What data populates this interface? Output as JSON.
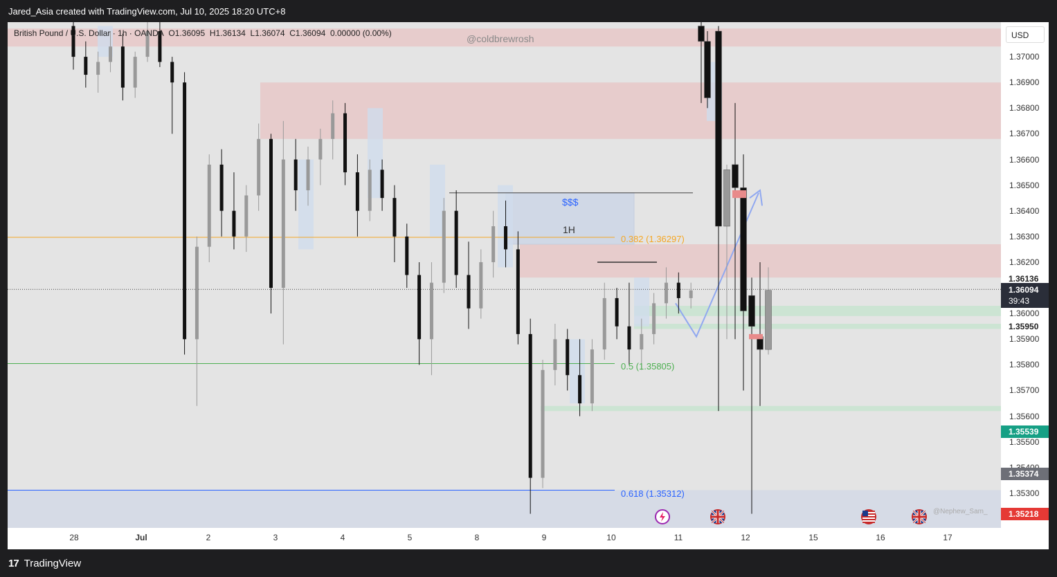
{
  "header": {
    "title": "Jared_Asia created with TradingView.com, Jul 10, 2025 18:20 UTC+8"
  },
  "legend": {
    "symbol": "British Pound / U.S. Dollar · 1h · OANDA",
    "open": "O1.36095",
    "high": "H1.36134",
    "low": "L1.36074",
    "close": "C1.36094",
    "change": "0.00000 (0.00%)"
  },
  "watermark": "@coldbrewrosh",
  "watermark2": "@Nephew_Sam_",
  "currency_button": "USD",
  "footer": {
    "brand": "TradingView",
    "logo_glyph": "17"
  },
  "annotations": {
    "liquidity": "$$$",
    "timeframe": "1H"
  },
  "fib_labels": {
    "f382": "0.382 (1.36297)",
    "f5": "0.5 (1.35805)",
    "f618": "0.618 (1.35312)"
  },
  "price_labels": {
    "p1": "1.36136",
    "current": "1.36094",
    "countdown": "39:43",
    "p2": "1.35950",
    "p3": "1.35539",
    "p4": "1.35374",
    "p5": "1.35218"
  },
  "colors": {
    "background": "#e4e4e4",
    "up": "#999999",
    "down": "#111111",
    "fib382": "#f5a623",
    "fib5": "#4caf50",
    "fib618": "#2962ff",
    "supply_zone": "#e8c8c8",
    "demand_zone": "#c8e4d0"
  },
  "chart_data": {
    "type": "candlestick",
    "symbol": "GBPUSD",
    "timeframe": "1h",
    "x_ticks": [
      "28",
      "Jul",
      "2",
      "3",
      "4",
      "5",
      "8",
      "9",
      "10",
      "11",
      "12",
      "15",
      "16",
      "17"
    ],
    "y_ticks": [
      "1.37000",
      "1.36900",
      "1.36800",
      "1.36700",
      "1.36600",
      "1.36500",
      "1.36400",
      "1.36300",
      "1.36200",
      "1.36000",
      "1.35900",
      "1.35800",
      "1.35700",
      "1.35600",
      "1.35500",
      "1.35400",
      "1.35300"
    ],
    "ylim": [
      1.35165,
      1.37135
    ],
    "last_price": 1.36094,
    "horizontal_lines": [
      {
        "label": "0.382 (1.36297)",
        "price": 1.36297,
        "color": "#f5a623"
      },
      {
        "label": "0.5 (1.35805)",
        "price": 1.35805,
        "color": "#4caf50"
      },
      {
        "label": "0.618 (1.35312)",
        "price": 1.35312,
        "color": "#2962ff"
      }
    ],
    "zones": [
      {
        "kind": "supply",
        "from": 1.3704,
        "to": 1.3711
      },
      {
        "kind": "supply",
        "from": 1.3668,
        "to": 1.369
      },
      {
        "kind": "supply",
        "from": 1.3614,
        "to": 1.3627
      },
      {
        "kind": "demand",
        "from": 1.3599,
        "to": 1.3603
      },
      {
        "kind": "demand",
        "from": 1.3594,
        "to": 1.3596
      },
      {
        "kind": "demand",
        "from": 1.3562,
        "to": 1.3564
      }
    ],
    "candles": [
      {
        "d": "28",
        "o": 1.3712,
        "h": 1.3718,
        "l": 1.3695,
        "c": 1.37
      },
      {
        "d": "28",
        "o": 1.37,
        "h": 1.3706,
        "l": 1.3688,
        "c": 1.3693
      },
      {
        "d": "28",
        "o": 1.3693,
        "h": 1.3702,
        "l": 1.3686,
        "c": 1.3698
      },
      {
        "d": "Jul",
        "o": 1.3698,
        "h": 1.371,
        "l": 1.3694,
        "c": 1.3704
      },
      {
        "d": "Jul",
        "o": 1.3704,
        "h": 1.3709,
        "l": 1.3683,
        "c": 1.3688
      },
      {
        "d": "Jul",
        "o": 1.3688,
        "h": 1.3702,
        "l": 1.3684,
        "c": 1.37
      },
      {
        "d": "2",
        "o": 1.37,
        "h": 1.3714,
        "l": 1.3698,
        "c": 1.371
      },
      {
        "d": "2",
        "o": 1.371,
        "h": 1.3716,
        "l": 1.3696,
        "c": 1.3698
      },
      {
        "d": "3",
        "o": 1.3698,
        "h": 1.37,
        "l": 1.367,
        "c": 1.369
      },
      {
        "d": "3",
        "o": 1.369,
        "h": 1.3694,
        "l": 1.3584,
        "c": 1.359
      },
      {
        "d": "3",
        "o": 1.359,
        "h": 1.363,
        "l": 1.3564,
        "c": 1.3626
      },
      {
        "d": "3",
        "o": 1.3626,
        "h": 1.3662,
        "l": 1.362,
        "c": 1.3658
      },
      {
        "d": "3",
        "o": 1.3658,
        "h": 1.3664,
        "l": 1.363,
        "c": 1.364
      },
      {
        "d": "3",
        "o": 1.364,
        "h": 1.3655,
        "l": 1.3625,
        "c": 1.363
      },
      {
        "d": "3",
        "o": 1.363,
        "h": 1.365,
        "l": 1.3624,
        "c": 1.3646
      },
      {
        "d": "4",
        "o": 1.3646,
        "h": 1.3674,
        "l": 1.364,
        "c": 1.3668
      },
      {
        "d": "4",
        "o": 1.3668,
        "h": 1.367,
        "l": 1.36,
        "c": 1.361
      },
      {
        "d": "4",
        "o": 1.361,
        "h": 1.3675,
        "l": 1.3588,
        "c": 1.366
      },
      {
        "d": "4",
        "o": 1.366,
        "h": 1.3668,
        "l": 1.364,
        "c": 1.3648
      },
      {
        "d": "4",
        "o": 1.3648,
        "h": 1.3665,
        "l": 1.3642,
        "c": 1.366
      },
      {
        "d": "4",
        "o": 1.366,
        "h": 1.3672,
        "l": 1.365,
        "c": 1.3668
      },
      {
        "d": "4",
        "o": 1.3668,
        "h": 1.3683,
        "l": 1.366,
        "c": 1.3678
      },
      {
        "d": "5",
        "o": 1.3678,
        "h": 1.3682,
        "l": 1.365,
        "c": 1.3655
      },
      {
        "d": "5",
        "o": 1.3655,
        "h": 1.3662,
        "l": 1.363,
        "c": 1.364
      },
      {
        "d": "5",
        "o": 1.364,
        "h": 1.366,
        "l": 1.3636,
        "c": 1.3656
      },
      {
        "d": "5",
        "o": 1.3656,
        "h": 1.366,
        "l": 1.364,
        "c": 1.3645
      },
      {
        "d": "5",
        "o": 1.3645,
        "h": 1.365,
        "l": 1.362,
        "c": 1.363
      },
      {
        "d": "5",
        "o": 1.363,
        "h": 1.3635,
        "l": 1.361,
        "c": 1.3615
      },
      {
        "d": "5",
        "o": 1.3615,
        "h": 1.362,
        "l": 1.358,
        "c": 1.359
      },
      {
        "d": "8",
        "o": 1.359,
        "h": 1.362,
        "l": 1.3576,
        "c": 1.3612
      },
      {
        "d": "8",
        "o": 1.3612,
        "h": 1.3645,
        "l": 1.3608,
        "c": 1.364
      },
      {
        "d": "8",
        "o": 1.364,
        "h": 1.3648,
        "l": 1.361,
        "c": 1.3615
      },
      {
        "d": "8",
        "o": 1.3615,
        "h": 1.3628,
        "l": 1.3594,
        "c": 1.3602
      },
      {
        "d": "8",
        "o": 1.3602,
        "h": 1.3625,
        "l": 1.3598,
        "c": 1.362
      },
      {
        "d": "8",
        "o": 1.362,
        "h": 1.364,
        "l": 1.3614,
        "c": 1.3634
      },
      {
        "d": "8",
        "o": 1.3634,
        "h": 1.3644,
        "l": 1.3618,
        "c": 1.3625
      },
      {
        "d": "8",
        "o": 1.3625,
        "h": 1.3632,
        "l": 1.3588,
        "c": 1.3592
      },
      {
        "d": "9",
        "o": 1.3592,
        "h": 1.3598,
        "l": 1.3522,
        "c": 1.3536
      },
      {
        "d": "9",
        "o": 1.3536,
        "h": 1.3582,
        "l": 1.3532,
        "c": 1.3578
      },
      {
        "d": "9",
        "o": 1.3578,
        "h": 1.3596,
        "l": 1.3572,
        "c": 1.359
      },
      {
        "d": "9",
        "o": 1.359,
        "h": 1.3594,
        "l": 1.357,
        "c": 1.3576
      },
      {
        "d": "9",
        "o": 1.3576,
        "h": 1.359,
        "l": 1.356,
        "c": 1.3565
      },
      {
        "d": "9",
        "o": 1.3565,
        "h": 1.359,
        "l": 1.3562,
        "c": 1.3586
      },
      {
        "d": "9",
        "o": 1.3586,
        "h": 1.3612,
        "l": 1.3582,
        "c": 1.3606
      },
      {
        "d": "9",
        "o": 1.3606,
        "h": 1.361,
        "l": 1.359,
        "c": 1.3595
      },
      {
        "d": "10",
        "o": 1.3595,
        "h": 1.3612,
        "l": 1.358,
        "c": 1.3586
      },
      {
        "d": "10",
        "o": 1.3586,
        "h": 1.3598,
        "l": 1.3578,
        "c": 1.3592
      },
      {
        "d": "10",
        "o": 1.3592,
        "h": 1.3608,
        "l": 1.3588,
        "c": 1.3604
      },
      {
        "d": "10",
        "o": 1.3604,
        "h": 1.3618,
        "l": 1.3598,
        "c": 1.3612
      },
      {
        "d": "10",
        "o": 1.3612,
        "h": 1.3616,
        "l": 1.36,
        "c": 1.3606
      },
      {
        "d": "10",
        "o": 1.3606,
        "h": 1.3612,
        "l": 1.3602,
        "c": 1.3609
      },
      {
        "d": "11",
        "o": 1.3712,
        "h": 1.3716,
        "l": 1.3682,
        "c": 1.3706
      },
      {
        "d": "11",
        "o": 1.3706,
        "h": 1.371,
        "l": 1.368,
        "c": 1.3684
      },
      {
        "d": "11",
        "o": 1.371,
        "h": 1.3712,
        "l": 1.3562,
        "c": 1.3634
      },
      {
        "d": "11",
        "o": 1.3634,
        "h": 1.3658,
        "l": 1.359,
        "c": 1.3656
      },
      {
        "d": "12",
        "o": 1.3658,
        "h": 1.3682,
        "l": 1.359,
        "c": 1.3649
      },
      {
        "d": "12",
        "o": 1.3649,
        "h": 1.3662,
        "l": 1.357,
        "c": 1.3601
      },
      {
        "d": "12",
        "o": 1.3607,
        "h": 1.3614,
        "l": 1.3522,
        "c": 1.3595
      },
      {
        "d": "12",
        "o": 1.3591,
        "h": 1.362,
        "l": 1.3564,
        "c": 1.3586
      },
      {
        "d": "12",
        "o": 1.3586,
        "h": 1.3618,
        "l": 1.3584,
        "c": 1.3609
      }
    ]
  }
}
